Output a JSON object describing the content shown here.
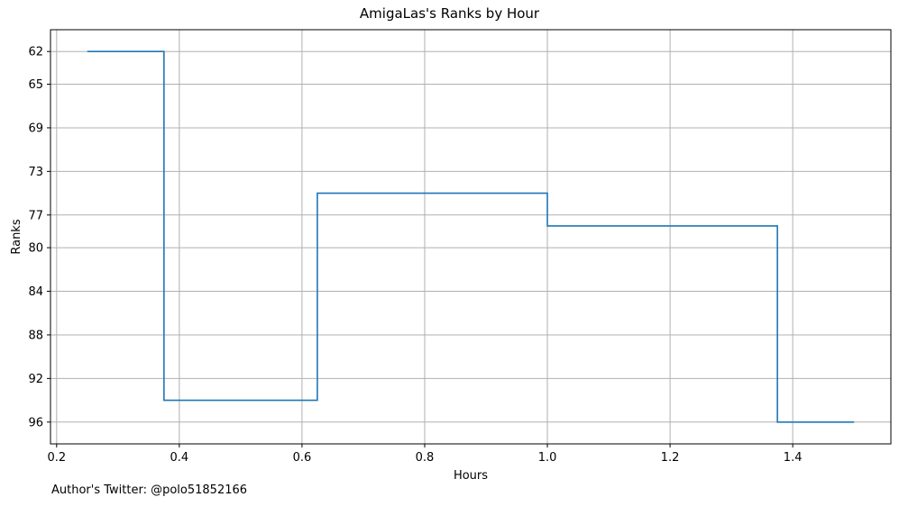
{
  "chart_data": {
    "type": "line",
    "step": true,
    "title": "AmigaLas's Ranks by Hour",
    "xlabel": "Hours",
    "ylabel": "Ranks",
    "xlim": [
      0.19,
      1.56
    ],
    "ylim": [
      98.0,
      60.0
    ],
    "y_inverted": true,
    "grid": true,
    "xticks": [
      0.2,
      0.4,
      0.6,
      0.8,
      1.0,
      1.2,
      1.4
    ],
    "xtick_labels": [
      "0.2",
      "0.4",
      "0.6",
      "0.8",
      "1.0",
      "1.2",
      "1.4"
    ],
    "yticks": [
      62,
      65,
      69,
      73,
      77,
      80,
      84,
      88,
      92,
      96
    ],
    "ytick_labels": [
      "62",
      "65",
      "69",
      "73",
      "77",
      "80",
      "84",
      "88",
      "92",
      "96"
    ],
    "series": [
      {
        "color": "#1f77b4",
        "x": [
          0.25,
          0.375,
          0.375,
          0.625,
          0.625,
          1.0,
          1.0,
          1.375,
          1.375,
          1.5
        ],
        "y": [
          62,
          62,
          94,
          94,
          75,
          75,
          78,
          78,
          96,
          96
        ]
      }
    ]
  },
  "footer_text": "Author's Twitter: @polo51852166"
}
